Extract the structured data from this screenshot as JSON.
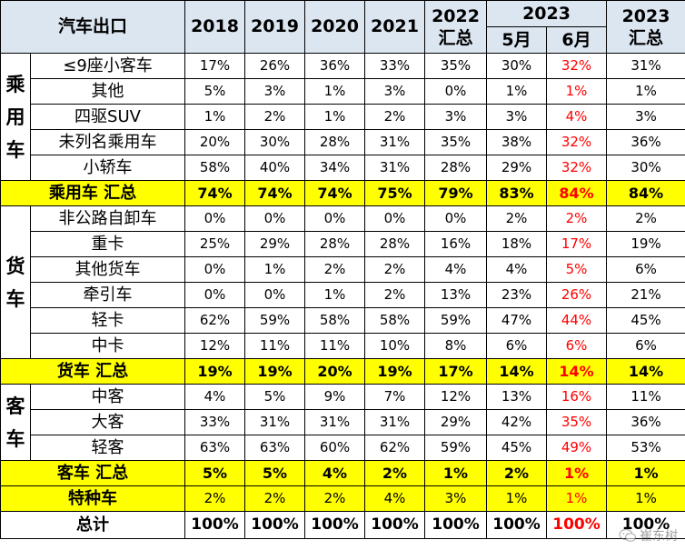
{
  "header": {
    "title": "汽车出口",
    "years": [
      "2018",
      "2019",
      "2020",
      "2021"
    ],
    "y2022_top": "2022",
    "y2022_bottom": "汇总",
    "y2023": "2023",
    "may": "5月",
    "jun": "6月",
    "y2023sum_top": "2023",
    "y2023sum_bottom": "汇总"
  },
  "groups": {
    "passenger": "乘用车",
    "truck": "货车",
    "bus": "客车"
  },
  "rows": {
    "p1": {
      "label": "≤9座小客车",
      "v": [
        "17%",
        "26%",
        "36%",
        "33%",
        "35%",
        "30%",
        "32%",
        "31%"
      ]
    },
    "p2": {
      "label": "其他",
      "v": [
        "5%",
        "3%",
        "1%",
        "3%",
        "0%",
        "1%",
        "1%",
        "1%"
      ]
    },
    "p3": {
      "label": "四驱SUV",
      "v": [
        "1%",
        "2%",
        "1%",
        "2%",
        "3%",
        "3%",
        "4%",
        "3%"
      ]
    },
    "p4": {
      "label": "未列名乘用车",
      "v": [
        "20%",
        "30%",
        "28%",
        "31%",
        "35%",
        "38%",
        "32%",
        "36%"
      ]
    },
    "p5": {
      "label": "小轿车",
      "v": [
        "58%",
        "40%",
        "34%",
        "31%",
        "28%",
        "29%",
        "32%",
        "30%"
      ]
    },
    "pt": {
      "label": "乘用车 汇总",
      "v": [
        "74%",
        "74%",
        "74%",
        "75%",
        "79%",
        "83%",
        "84%",
        "84%"
      ]
    },
    "t1": {
      "label": "非公路自卸车",
      "v": [
        "0%",
        "0%",
        "0%",
        "0%",
        "0%",
        "2%",
        "2%",
        "2%"
      ]
    },
    "t2": {
      "label": "重卡",
      "v": [
        "25%",
        "29%",
        "28%",
        "28%",
        "16%",
        "18%",
        "17%",
        "19%"
      ]
    },
    "t3": {
      "label": "其他货车",
      "v": [
        "0%",
        "1%",
        "2%",
        "2%",
        "4%",
        "4%",
        "5%",
        "6%"
      ]
    },
    "t4": {
      "label": "牵引车",
      "v": [
        "0%",
        "0%",
        "1%",
        "2%",
        "13%",
        "23%",
        "26%",
        "21%"
      ]
    },
    "t5": {
      "label": "轻卡",
      "v": [
        "62%",
        "59%",
        "58%",
        "58%",
        "59%",
        "47%",
        "44%",
        "45%"
      ]
    },
    "t6": {
      "label": "中卡",
      "v": [
        "12%",
        "11%",
        "11%",
        "10%",
        "8%",
        "6%",
        "6%",
        "6%"
      ]
    },
    "tt": {
      "label": "货车 汇总",
      "v": [
        "19%",
        "19%",
        "20%",
        "19%",
        "17%",
        "14%",
        "14%",
        "14%"
      ]
    },
    "b1": {
      "label": "中客",
      "v": [
        "4%",
        "5%",
        "9%",
        "7%",
        "12%",
        "13%",
        "16%",
        "11%"
      ]
    },
    "b2": {
      "label": "大客",
      "v": [
        "33%",
        "31%",
        "31%",
        "31%",
        "29%",
        "42%",
        "35%",
        "36%"
      ]
    },
    "b3": {
      "label": "轻客",
      "v": [
        "63%",
        "63%",
        "60%",
        "62%",
        "59%",
        "45%",
        "49%",
        "53%"
      ]
    },
    "bt": {
      "label": "客车 汇总",
      "v": [
        "5%",
        "5%",
        "4%",
        "2%",
        "1%",
        "2%",
        "1%",
        "1%"
      ]
    },
    "sp": {
      "label": "特种车",
      "v": [
        "2%",
        "2%",
        "2%",
        "4%",
        "3%",
        "1%",
        "1%",
        "1%"
      ]
    },
    "gt": {
      "label": "总计",
      "v": [
        "100%",
        "100%",
        "100%",
        "100%",
        "100%",
        "100%",
        "100%",
        "100%"
      ]
    }
  },
  "colors": {
    "header_bg": "#dce6f1",
    "highlight_bg": "#ffff00",
    "emphasis_text": "#ff0000"
  },
  "watermark": {
    "text": "崔东树",
    "icon": "wechat-logo-icon"
  }
}
